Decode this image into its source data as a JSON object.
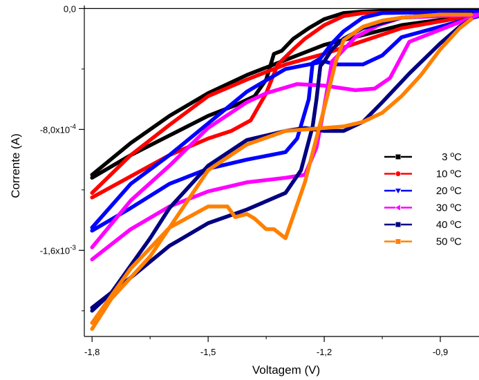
{
  "chart_data": {
    "type": "line",
    "xlabel": "Voltagem (V)",
    "ylabel": "Corrente (A)",
    "xlim": [
      -1.82,
      -0.8
    ],
    "ylim": [
      -0.00217,
      2e-05
    ],
    "xticks": [
      {
        "value": -1.8,
        "label": "-1,8"
      },
      {
        "value": -1.5,
        "label": "-1,5"
      },
      {
        "value": -1.2,
        "label": "-1,2"
      },
      {
        "value": -0.9,
        "label": "-0,9"
      }
    ],
    "yticks": [
      {
        "value": 0,
        "label": "0,0",
        "base": "0,0",
        "exp": ""
      },
      {
        "value": -0.0008,
        "label": "-8,0x10-4",
        "base": "-8,0x10",
        "exp": "-4"
      },
      {
        "value": -0.0016,
        "label": "-1,6x10-3",
        "base": "-1,6x10",
        "exp": "-3"
      }
    ],
    "grid": false,
    "legend_position": "right",
    "zero_line": true,
    "series": [
      {
        "name": "3 ºC",
        "color": "#000000",
        "marker": "square",
        "forward": [
          [
            -1.8,
            -0.00112
          ],
          [
            -1.7,
            -0.00097
          ],
          [
            -1.6,
            -0.00084
          ],
          [
            -1.5,
            -0.00071
          ],
          [
            -1.43,
            -0.00064
          ],
          [
            -1.38,
            -0.00058
          ],
          [
            -1.35,
            -0.00047
          ],
          [
            -1.33,
            -0.0003
          ],
          [
            -1.31,
            -0.00028
          ],
          [
            -1.28,
            -0.0002
          ],
          [
            -1.24,
            -0.00013
          ],
          [
            -1.2,
            -7e-05
          ],
          [
            -1.15,
            -3e-05
          ],
          [
            -1.1,
            -2e-05
          ],
          [
            -1.0,
            -1e-05
          ],
          [
            -0.8,
            -1e-05
          ]
        ],
        "backward": [
          [
            -0.8,
            -4e-05
          ],
          [
            -1.0,
            -0.00011
          ],
          [
            -1.2,
            -0.00024
          ],
          [
            -1.4,
            -0.00044
          ],
          [
            -1.5,
            -0.00056
          ],
          [
            -1.6,
            -0.00071
          ],
          [
            -1.7,
            -0.00089
          ],
          [
            -1.8,
            -0.0011
          ]
        ]
      },
      {
        "name": "10 ºC",
        "color": "#ff0000",
        "marker": "circle",
        "forward": [
          [
            -1.8,
            -0.00125
          ],
          [
            -1.7,
            -0.00111
          ],
          [
            -1.6,
            -0.00097
          ],
          [
            -1.5,
            -0.00086
          ],
          [
            -1.44,
            -0.00081
          ],
          [
            -1.39,
            -0.00074
          ],
          [
            -1.35,
            -0.00056
          ],
          [
            -1.32,
            -0.00037
          ],
          [
            -1.3,
            -0.00032
          ],
          [
            -1.28,
            -0.00027
          ],
          [
            -1.25,
            -0.0002
          ],
          [
            -1.2,
            -0.00011
          ],
          [
            -1.15,
            -5e-05
          ],
          [
            -1.1,
            -3e-05
          ],
          [
            -0.8,
            -2e-05
          ]
        ],
        "backward": [
          [
            -0.8,
            -4e-05
          ],
          [
            -1.0,
            -0.00013
          ],
          [
            -1.2,
            -0.0003
          ],
          [
            -1.3,
            -0.00037
          ],
          [
            -1.4,
            -0.00047
          ],
          [
            -1.5,
            -0.00058
          ],
          [
            -1.6,
            -0.00077
          ],
          [
            -1.7,
            -0.00097
          ],
          [
            -1.8,
            -0.00122
          ]
        ]
      },
      {
        "name": "20 ºC",
        "color": "#0000ff",
        "marker": "triangle-down",
        "forward": [
          [
            -1.8,
            -0.00147
          ],
          [
            -1.7,
            -0.00132
          ],
          [
            -1.6,
            -0.00116
          ],
          [
            -1.5,
            -0.00106
          ],
          [
            -1.4,
            -0.001
          ],
          [
            -1.3,
            -0.00095
          ],
          [
            -1.27,
            -0.00086
          ],
          [
            -1.24,
            -0.0006
          ],
          [
            -1.23,
            -0.00036
          ],
          [
            -1.21,
            -0.00033
          ],
          [
            -1.18,
            -0.00023
          ],
          [
            -1.15,
            -0.00015
          ],
          [
            -1.1,
            -6e-05
          ],
          [
            -1.05,
            -3e-05
          ],
          [
            -0.8,
            -2e-05
          ]
        ],
        "backward": [
          [
            -0.8,
            -5e-05
          ],
          [
            -1.0,
            -0.00019
          ],
          [
            -1.05,
            -0.00031
          ],
          [
            -1.1,
            -0.00037
          ],
          [
            -1.17,
            -0.00037
          ],
          [
            -1.2,
            -0.00035
          ],
          [
            -1.3,
            -0.0004
          ],
          [
            -1.4,
            -0.00055
          ],
          [
            -1.5,
            -0.00076
          ],
          [
            -1.6,
            -0.00097
          ],
          [
            -1.7,
            -0.00116
          ],
          [
            -1.8,
            -0.00145
          ]
        ]
      },
      {
        "name": "30 ºC",
        "color": "#ff00ff",
        "marker": "triangle-left",
        "forward": [
          [
            -1.8,
            -0.00166
          ],
          [
            -1.7,
            -0.00146
          ],
          [
            -1.6,
            -0.00131
          ],
          [
            -1.5,
            -0.00121
          ],
          [
            -1.4,
            -0.00115
          ],
          [
            -1.3,
            -0.00112
          ],
          [
            -1.25,
            -0.0011
          ],
          [
            -1.22,
            -0.00092
          ],
          [
            -1.2,
            -0.00065
          ],
          [
            -1.18,
            -0.00035
          ],
          [
            -1.16,
            -0.0003
          ],
          [
            -1.12,
            -0.00019
          ],
          [
            -1.06,
            -0.00011
          ],
          [
            -1.0,
            -6e-05
          ],
          [
            -0.8,
            -4e-05
          ]
        ],
        "backward": [
          [
            -0.8,
            -4e-05
          ],
          [
            -0.98,
            -0.00022
          ],
          [
            -1.03,
            -0.00046
          ],
          [
            -1.07,
            -0.00053
          ],
          [
            -1.12,
            -0.00054
          ],
          [
            -1.2,
            -0.00051
          ],
          [
            -1.27,
            -0.0005
          ],
          [
            -1.35,
            -0.00056
          ],
          [
            -1.4,
            -0.00062
          ],
          [
            -1.5,
            -0.00079
          ],
          [
            -1.6,
            -0.00104
          ],
          [
            -1.7,
            -0.00127
          ],
          [
            -1.8,
            -0.00158
          ]
        ]
      },
      {
        "name": "40 ºC",
        "color": "#000080",
        "marker": "square",
        "forward": [
          [
            -1.8,
            -0.002
          ],
          [
            -1.75,
            -0.00188
          ],
          [
            -1.7,
            -0.0017
          ],
          [
            -1.65,
            -0.00152
          ],
          [
            -1.6,
            -0.00132
          ],
          [
            -1.5,
            -0.00104
          ],
          [
            -1.4,
            -0.00087
          ],
          [
            -1.3,
            -0.00081
          ],
          [
            -1.25,
            -0.00079
          ],
          [
            -1.2,
            -0.00081
          ],
          [
            -1.15,
            -0.00081
          ],
          [
            -1.1,
            -0.00075
          ],
          [
            -1.05,
            -0.00062
          ],
          [
            -0.98,
            -0.00043
          ],
          [
            -0.9,
            -0.00023
          ],
          [
            -0.85,
            -0.00012
          ],
          [
            -0.82,
            -7e-05
          ]
        ],
        "backward": [
          [
            -0.82,
            -3e-05
          ],
          [
            -0.9,
            -4e-05
          ],
          [
            -1.0,
            -6e-05
          ],
          [
            -1.1,
            -0.00013
          ],
          [
            -1.15,
            -0.0002
          ],
          [
            -1.18,
            -0.00027
          ],
          [
            -1.2,
            -0.00035
          ],
          [
            -1.21,
            -0.00038
          ],
          [
            -1.22,
            -0.0006
          ],
          [
            -1.23,
            -0.00078
          ],
          [
            -1.26,
            -0.00107
          ],
          [
            -1.3,
            -0.00122
          ],
          [
            -1.4,
            -0.00133
          ],
          [
            -1.5,
            -0.00142
          ],
          [
            -1.6,
            -0.00157
          ],
          [
            -1.7,
            -0.00178
          ],
          [
            -1.8,
            -0.00198
          ]
        ]
      },
      {
        "name": "50 ºC",
        "color": "#ff8000",
        "marker": "square",
        "forward": [
          [
            -1.8,
            -0.00212
          ],
          [
            -1.75,
            -0.00192
          ],
          [
            -1.7,
            -0.00178
          ],
          [
            -1.65,
            -0.00164
          ],
          [
            -1.6,
            -0.00145
          ],
          [
            -1.5,
            -0.00107
          ],
          [
            -1.4,
            -0.0009
          ],
          [
            -1.3,
            -0.00081
          ],
          [
            -1.25,
            -0.0008
          ],
          [
            -1.2,
            -0.00079
          ],
          [
            -1.15,
            -0.00078
          ],
          [
            -1.1,
            -0.00075
          ],
          [
            -1.05,
            -0.00069
          ],
          [
            -1.0,
            -0.00058
          ],
          [
            -0.95,
            -0.00044
          ],
          [
            -0.9,
            -0.00027
          ],
          [
            -0.85,
            -0.00013
          ],
          [
            -0.82,
            -7e-05
          ]
        ],
        "backward": [
          [
            -0.82,
            -4e-05
          ],
          [
            -0.9,
            -4e-05
          ],
          [
            -1.0,
            -6e-05
          ],
          [
            -1.05,
            -8e-05
          ],
          [
            -1.1,
            -0.00012
          ],
          [
            -1.15,
            -0.00021
          ],
          [
            -1.17,
            -0.00035
          ],
          [
            -1.2,
            -0.00066
          ],
          [
            -1.25,
            -0.00115
          ],
          [
            -1.3,
            -0.00152
          ],
          [
            -1.33,
            -0.00146
          ],
          [
            -1.35,
            -0.00146
          ],
          [
            -1.38,
            -0.00139
          ],
          [
            -1.4,
            -0.00136
          ],
          [
            -1.43,
            -0.00138
          ],
          [
            -1.45,
            -0.00131
          ],
          [
            -1.5,
            -0.00131
          ],
          [
            -1.6,
            -0.00145
          ],
          [
            -1.7,
            -0.00172
          ],
          [
            -1.8,
            -0.00208
          ]
        ]
      }
    ]
  }
}
